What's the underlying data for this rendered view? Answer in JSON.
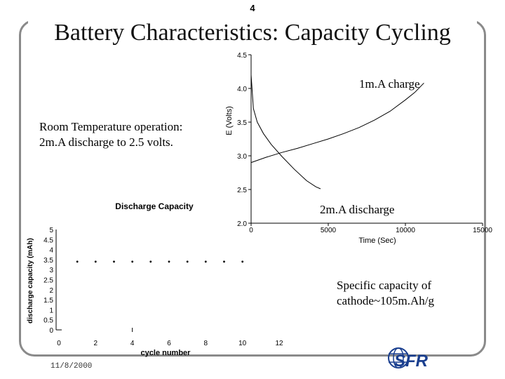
{
  "page_number": "4",
  "title": "Battery Characteristics:  Capacity Cycling",
  "notes": {
    "room_temp_line1": "Room Temperature operation:",
    "room_temp_line2": "2m.A discharge to 2.5 volts.",
    "specific_capacity_line1": "Specific capacity of",
    "specific_capacity_line2": "cathode~105m.Ah/g"
  },
  "date": "11/8/2000",
  "logo_text": "SFR",
  "colors": {
    "frame": "#8a8a8a",
    "line": "#000000",
    "logo_blue": "#1a3f8f"
  },
  "chart_data": [
    {
      "type": "line",
      "title": "",
      "xlabel": "Time (Sec)",
      "ylabel": "E (Volts)",
      "xlim": [
        0,
        15000
      ],
      "ylim": [
        2.0,
        4.5
      ],
      "xticks": [
        "0",
        "5000",
        "10000",
        "15000"
      ],
      "yticks": [
        "2.0",
        "2.5",
        "3.0",
        "3.5",
        "4.0",
        "4.5"
      ],
      "series": [
        {
          "name": "1m.A charge",
          "x": [
            0,
            1000,
            2000,
            3000,
            4000,
            5000,
            6000,
            7000,
            8000,
            9000,
            10000,
            10600,
            11200
          ],
          "y": [
            2.9,
            2.98,
            3.05,
            3.11,
            3.18,
            3.25,
            3.33,
            3.42,
            3.53,
            3.66,
            3.83,
            3.94,
            4.08
          ]
        },
        {
          "name": "2m.A discharge",
          "x": [
            0,
            150,
            400,
            800,
            1300,
            2000,
            2800,
            3600,
            4200,
            4500
          ],
          "y": [
            4.2,
            3.7,
            3.5,
            3.33,
            3.17,
            2.99,
            2.8,
            2.63,
            2.54,
            2.51
          ]
        }
      ],
      "annotations": [
        "1m.A charge",
        "2m.A discharge"
      ]
    },
    {
      "type": "scatter",
      "title": "Discharge Capacity",
      "xlabel": "cycle number",
      "ylabel": "discharge capacity (mAh)",
      "xlim": [
        0,
        12
      ],
      "ylim": [
        0,
        5
      ],
      "xticks": [
        "0",
        "2",
        "4",
        "6",
        "8",
        "10",
        "12"
      ],
      "yticks": [
        "0",
        "0.5",
        "1",
        "1.5",
        "2",
        "2.5",
        "3",
        "3.5",
        "4",
        "4.5",
        "5"
      ],
      "series": [
        {
          "name": "",
          "x": [
            1,
            2,
            3,
            4,
            5,
            6,
            7,
            8,
            9,
            10
          ],
          "y": [
            3.4,
            3.4,
            3.4,
            3.4,
            3.4,
            3.4,
            3.4,
            3.4,
            3.4,
            3.4
          ]
        }
      ]
    }
  ]
}
